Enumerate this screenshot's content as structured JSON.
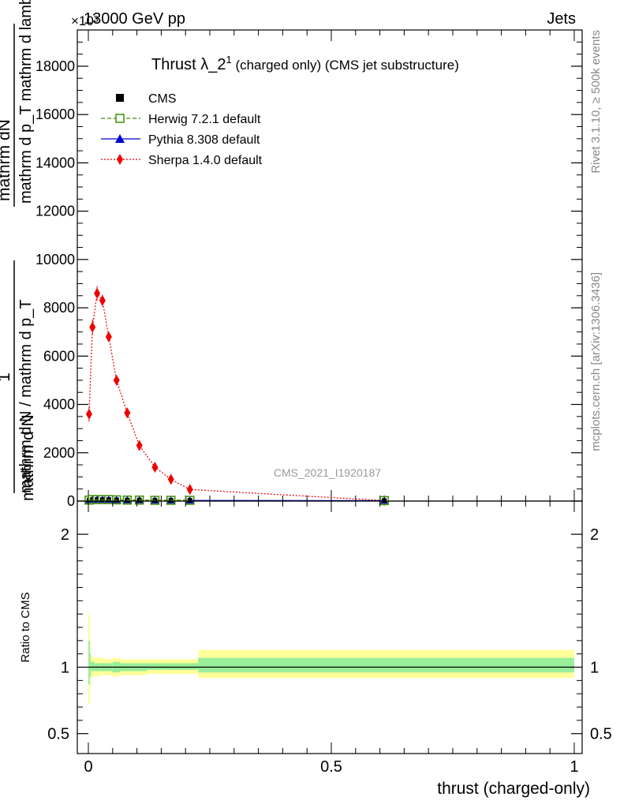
{
  "header": {
    "energy_label": "13000 GeV pp",
    "process_label": "Jets",
    "exponent_label": "×10³"
  },
  "side_labels": {
    "rivet": "Rivet 3.1.10, ≥ 500k events",
    "mcplots": "mcplots.cern.ch [arXiv:1306.3436]"
  },
  "watermark": "CMS_2021_I1920187",
  "chart_data": [
    {
      "type": "scatter",
      "title_main": "Thrust λ_2",
      "title_sup": "1",
      "title_rest": " (charged only) (CMS jet substructure)",
      "ylabel_line1": "mathrm dN",
      "ylabel_line2": "mathrm d p_T mathrm d lambda",
      "ylabel_frac_num": "1",
      "ylabel_frac_den": "mathrm d N / mathrm d p_T",
      "ylabel_lower": "mathrm d N",
      "xlim": [
        0,
        1
      ],
      "ylim": [
        0,
        19500
      ],
      "yticks": [
        {
          "v": 0,
          "label": "0"
        },
        {
          "v": 2000,
          "label": "2000"
        },
        {
          "v": 4000,
          "label": "4000"
        },
        {
          "v": 6000,
          "label": "6000"
        },
        {
          "v": 8000,
          "label": "8000"
        },
        {
          "v": 10000,
          "label": "10000"
        },
        {
          "v": 12000,
          "label": "12000"
        },
        {
          "v": 14000,
          "label": "14000"
        },
        {
          "v": 16000,
          "label": "16000"
        },
        {
          "v": 18000,
          "label": "18000"
        }
      ],
      "legend": [
        {
          "name": "CMS",
          "color": "#000000",
          "marker": "square-filled",
          "line": "none"
        },
        {
          "name": "Herwig 7.2.1 default",
          "color": "#3a8f00",
          "marker": "square-open",
          "line": "dashed"
        },
        {
          "name": "Pythia 8.308 default",
          "color": "#0000cc",
          "marker": "triangle",
          "line": "solid"
        },
        {
          "name": "Sherpa 1.4.0 default",
          "color": "#ee0000",
          "marker": "diamond",
          "line": "dotted"
        }
      ],
      "series": [
        {
          "name": "Sherpa 1.4.0 default",
          "x": [
            0.0015,
            0.0085,
            0.018,
            0.029,
            0.042,
            0.058,
            0.08,
            0.105,
            0.137,
            0.17,
            0.209,
            0.609
          ],
          "y": [
            3600,
            7200,
            8600,
            8300,
            6800,
            5000,
            3650,
            2300,
            1400,
            900,
            480,
            20
          ],
          "err": [
            320,
            320,
            300,
            250,
            200,
            160,
            130,
            100,
            80,
            60,
            40,
            10
          ]
        },
        {
          "name": "CMS",
          "x": [
            0.0015,
            0.0085,
            0.018,
            0.029,
            0.042,
            0.058,
            0.08,
            0.105,
            0.137,
            0.17,
            0.209,
            0.609
          ],
          "y": [
            40,
            60,
            60,
            60,
            60,
            50,
            40,
            40,
            30,
            30,
            30,
            20
          ]
        },
        {
          "name": "Herwig 7.2.1 default",
          "x": [
            0.0015,
            0.0085,
            0.018,
            0.029,
            0.042,
            0.058,
            0.08,
            0.105,
            0.137,
            0.17,
            0.209,
            0.609
          ],
          "y": [
            40,
            60,
            60,
            60,
            60,
            50,
            40,
            40,
            30,
            30,
            30,
            20
          ]
        },
        {
          "name": "Pythia 8.308 default",
          "x": [
            0.0015,
            0.0085,
            0.018,
            0.029,
            0.042,
            0.058,
            0.08,
            0.105,
            0.137,
            0.17,
            0.209,
            0.609
          ],
          "y": [
            40,
            60,
            60,
            60,
            60,
            50,
            40,
            40,
            30,
            30,
            30,
            20
          ]
        }
      ]
    },
    {
      "type": "area",
      "ylabel": "Ratio to CMS",
      "xlabel": "thrust (charged-only)",
      "xlim": [
        0,
        1
      ],
      "ylim": [
        0.35,
        2.25
      ],
      "xticks": [
        {
          "v": 0,
          "label": "0"
        },
        {
          "v": 0.5,
          "label": "0.5"
        },
        {
          "v": 1,
          "label": "1"
        }
      ],
      "yticks": [
        {
          "v": 0.5,
          "label": "0.5"
        },
        {
          "v": 1,
          "label": "1"
        },
        {
          "v": 2,
          "label": "2"
        }
      ],
      "bands": {
        "edges": [
          0,
          0.003,
          0.005,
          0.012,
          0.024,
          0.035,
          0.05,
          0.065,
          0.09,
          0.12,
          0.15,
          0.19,
          0.226,
          1.0
        ],
        "total_lo": [
          0.72,
          0.85,
          0.93,
          0.93,
          0.94,
          0.94,
          0.93,
          0.94,
          0.94,
          0.95,
          0.95,
          0.95,
          0.92
        ],
        "total_hi": [
          1.4,
          1.2,
          1.08,
          1.07,
          1.07,
          1.06,
          1.07,
          1.06,
          1.06,
          1.06,
          1.06,
          1.06,
          1.13
        ],
        "stat_lo": [
          0.87,
          0.93,
          0.97,
          0.97,
          0.97,
          0.97,
          0.96,
          0.97,
          0.97,
          0.98,
          0.98,
          0.98,
          0.96
        ],
        "stat_hi": [
          1.2,
          1.1,
          1.04,
          1.03,
          1.03,
          1.03,
          1.04,
          1.03,
          1.03,
          1.03,
          1.03,
          1.03,
          1.07
        ]
      },
      "reference": 1.0,
      "colors": {
        "total": "#ffff99",
        "stat": "#99ee99",
        "line": "#000000"
      }
    }
  ]
}
